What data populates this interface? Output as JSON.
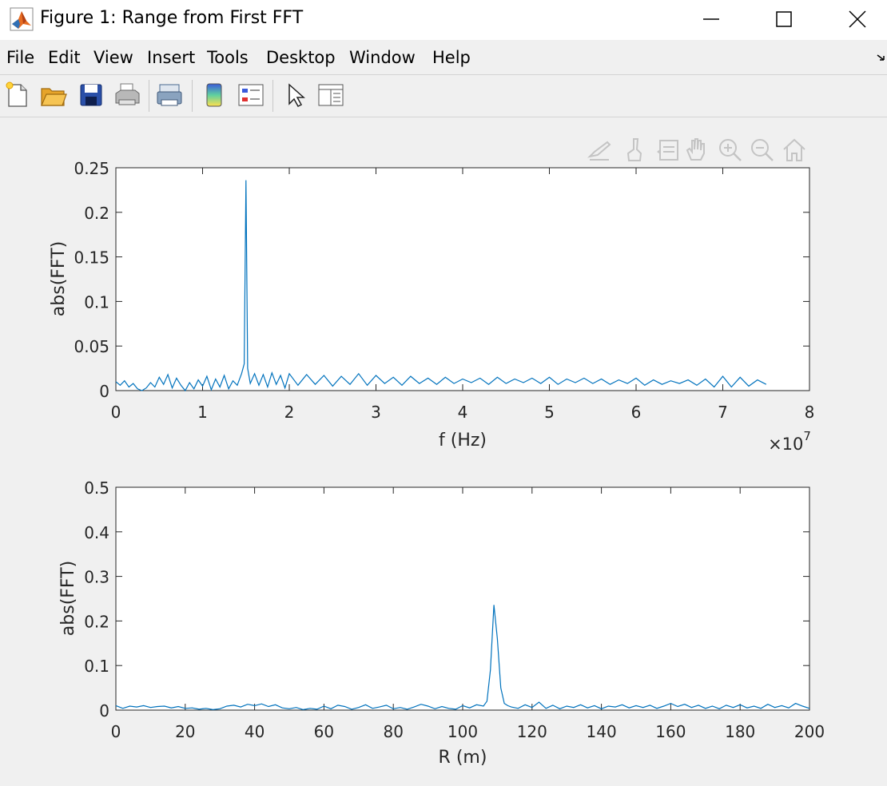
{
  "window": {
    "title": "Figure 1: Range from First FFT"
  },
  "menu": {
    "items": [
      "File",
      "Edit",
      "View",
      "Insert",
      "Tools",
      "Desktop",
      "Window",
      "Help"
    ]
  },
  "toolbar": {
    "icons": [
      "new-figure-icon",
      "open-file-icon",
      "save-icon",
      "print-icon",
      "link-plot-icon",
      "colorbar-icon",
      "legend-icon",
      "pointer-icon",
      "property-inspector-icon"
    ]
  },
  "axes_toolbar": {
    "icons": [
      "export-icon",
      "brush-icon",
      "data-tips-icon",
      "pan-icon",
      "zoom-in-icon",
      "zoom-out-icon",
      "home-icon"
    ]
  },
  "colors": {
    "line": "#0072BD"
  },
  "chart_data": [
    {
      "type": "line",
      "xlabel": "f (Hz)",
      "ylabel": "abs(FFT)",
      "xlim": [
        0,
        8
      ],
      "ylim": [
        0,
        0.25
      ],
      "x_ticks": [
        "0",
        "1",
        "2",
        "3",
        "4",
        "5",
        "6",
        "7",
        "8"
      ],
      "y_ticks": [
        "0",
        "0.05",
        "0.1",
        "0.15",
        "0.2",
        "0.25"
      ],
      "x_exponent_base": "×10",
      "x_exponent_power": "7",
      "series": [
        {
          "x": [
            0,
            0.05,
            0.1,
            0.15,
            0.2,
            0.25,
            0.3,
            0.35,
            0.4,
            0.45,
            0.5,
            0.55,
            0.6,
            0.65,
            0.7,
            0.75,
            0.8,
            0.85,
            0.9,
            0.95,
            1.0,
            1.05,
            1.1,
            1.15,
            1.2,
            1.25,
            1.3,
            1.35,
            1.4,
            1.45,
            1.48,
            1.5,
            1.52,
            1.55,
            1.6,
            1.65,
            1.7,
            1.75,
            1.8,
            1.85,
            1.9,
            1.95,
            2.0,
            2.1,
            2.2,
            2.3,
            2.4,
            2.5,
            2.6,
            2.7,
            2.8,
            2.9,
            3.0,
            3.1,
            3.2,
            3.3,
            3.4,
            3.5,
            3.6,
            3.7,
            3.8,
            3.9,
            4.0,
            4.1,
            4.2,
            4.3,
            4.4,
            4.5,
            4.6,
            4.7,
            4.8,
            4.9,
            5.0,
            5.1,
            5.2,
            5.3,
            5.4,
            5.5,
            5.6,
            5.7,
            5.8,
            5.9,
            6.0,
            6.1,
            6.2,
            6.3,
            6.4,
            6.5,
            6.6,
            6.7,
            6.8,
            6.9,
            7.0,
            7.1,
            7.2,
            7.3,
            7.4,
            7.5
          ],
          "y": [
            0.01,
            0.006,
            0.011,
            0.004,
            0.008,
            0.002,
            0.0,
            0.003,
            0.009,
            0.004,
            0.015,
            0.007,
            0.018,
            0.003,
            0.014,
            0.006,
            0.0,
            0.009,
            0.002,
            0.012,
            0.005,
            0.016,
            0.001,
            0.013,
            0.004,
            0.017,
            0.002,
            0.011,
            0.006,
            0.019,
            0.03,
            0.236,
            0.025,
            0.008,
            0.019,
            0.006,
            0.018,
            0.004,
            0.02,
            0.007,
            0.017,
            0.003,
            0.019,
            0.006,
            0.018,
            0.007,
            0.017,
            0.005,
            0.016,
            0.007,
            0.019,
            0.006,
            0.017,
            0.008,
            0.015,
            0.006,
            0.016,
            0.008,
            0.014,
            0.007,
            0.015,
            0.008,
            0.013,
            0.009,
            0.014,
            0.007,
            0.015,
            0.008,
            0.013,
            0.009,
            0.014,
            0.008,
            0.015,
            0.007,
            0.013,
            0.009,
            0.014,
            0.008,
            0.013,
            0.007,
            0.012,
            0.008,
            0.014,
            0.006,
            0.012,
            0.007,
            0.011,
            0.008,
            0.012,
            0.006,
            0.013,
            0.004,
            0.016,
            0.004,
            0.015,
            0.005,
            0.012,
            0.007
          ]
        }
      ]
    },
    {
      "type": "line",
      "xlabel": "R (m)",
      "ylabel": "abs(FFT)",
      "xlim": [
        0,
        200
      ],
      "ylim": [
        0,
        0.5
      ],
      "x_ticks": [
        "0",
        "20",
        "40",
        "60",
        "80",
        "100",
        "120",
        "140",
        "160",
        "180",
        "200"
      ],
      "y_ticks": [
        "0",
        "0.1",
        "0.2",
        "0.3",
        "0.4",
        "0.5"
      ],
      "series": [
        {
          "x": [
            0,
            2,
            4,
            6,
            8,
            10,
            12,
            14,
            16,
            18,
            20,
            22,
            24,
            26,
            28,
            30,
            32,
            34,
            36,
            38,
            40,
            42,
            44,
            46,
            48,
            50,
            52,
            54,
            56,
            58,
            60,
            62,
            64,
            66,
            68,
            70,
            72,
            74,
            76,
            78,
            80,
            82,
            84,
            86,
            88,
            90,
            92,
            94,
            96,
            98,
            100,
            102,
            104,
            106,
            107,
            108,
            109,
            110,
            111,
            112,
            113,
            114,
            116,
            118,
            120,
            122,
            124,
            126,
            128,
            130,
            132,
            134,
            136,
            138,
            140,
            142,
            144,
            146,
            148,
            150,
            152,
            154,
            156,
            158,
            160,
            162,
            164,
            166,
            168,
            170,
            172,
            174,
            176,
            178,
            180,
            182,
            184,
            186,
            188,
            190,
            192,
            194,
            196,
            198,
            200
          ],
          "y": [
            0.01,
            0.004,
            0.009,
            0.007,
            0.01,
            0.006,
            0.008,
            0.009,
            0.005,
            0.008,
            0.004,
            0.005,
            0.002,
            0.004,
            0.001,
            0.003,
            0.009,
            0.011,
            0.007,
            0.013,
            0.01,
            0.014,
            0.008,
            0.012,
            0.005,
            0.003,
            0.006,
            0.001,
            0.004,
            0.002,
            0.009,
            0.003,
            0.011,
            0.008,
            0.002,
            0.006,
            0.012,
            0.004,
            0.007,
            0.011,
            0.003,
            0.006,
            0.002,
            0.007,
            0.013,
            0.009,
            0.003,
            0.008,
            0.004,
            0.002,
            0.01,
            0.005,
            0.012,
            0.009,
            0.02,
            0.09,
            0.236,
            0.16,
            0.05,
            0.015,
            0.01,
            0.007,
            0.004,
            0.012,
            0.006,
            0.018,
            0.004,
            0.011,
            0.003,
            0.009,
            0.006,
            0.012,
            0.005,
            0.01,
            0.003,
            0.009,
            0.007,
            0.012,
            0.005,
            0.01,
            0.006,
            0.011,
            0.004,
            0.009,
            0.015,
            0.008,
            0.013,
            0.006,
            0.011,
            0.004,
            0.009,
            0.003,
            0.011,
            0.006,
            0.012,
            0.005,
            0.009,
            0.004,
            0.013,
            0.006,
            0.01,
            0.005,
            0.015,
            0.009,
            0.004
          ]
        }
      ]
    }
  ]
}
